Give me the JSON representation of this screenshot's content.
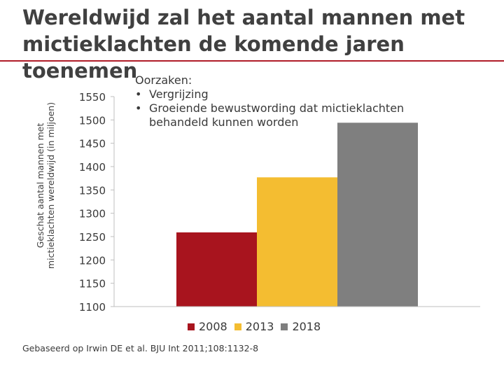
{
  "title": "Wereldwijd zal het aantal mannen met mictieklachten de komende jaren toenemen",
  "colors": {
    "accent": "#b01c28",
    "bar_2008": "#a8141e",
    "bar_2013": "#f4bd31",
    "bar_2018": "#7f7f7f"
  },
  "causes": {
    "heading": "Oorzaken:",
    "items": [
      "Vergrijzing",
      "Groeiende bewustwording dat mictieklachten behandeld kunnen worden"
    ],
    "bullet": "•"
  },
  "source": "Gebaseerd op Irwin DE et al. BJU Int 2011;108:1132-8",
  "chart_data": {
    "type": "bar",
    "title": "",
    "ylabel": "Geschat aantal mannen met mictieklachten wereldwijd (in miljoen)",
    "xlabel": "",
    "ylim": [
      1100,
      1550
    ],
    "yticks": [
      1100,
      1150,
      1200,
      1250,
      1300,
      1350,
      1400,
      1450,
      1500,
      1550
    ],
    "categories": [
      "2008",
      "2013",
      "2018"
    ],
    "values": [
      1259,
      1377,
      1494
    ],
    "legend": "bottom",
    "grid": false
  }
}
